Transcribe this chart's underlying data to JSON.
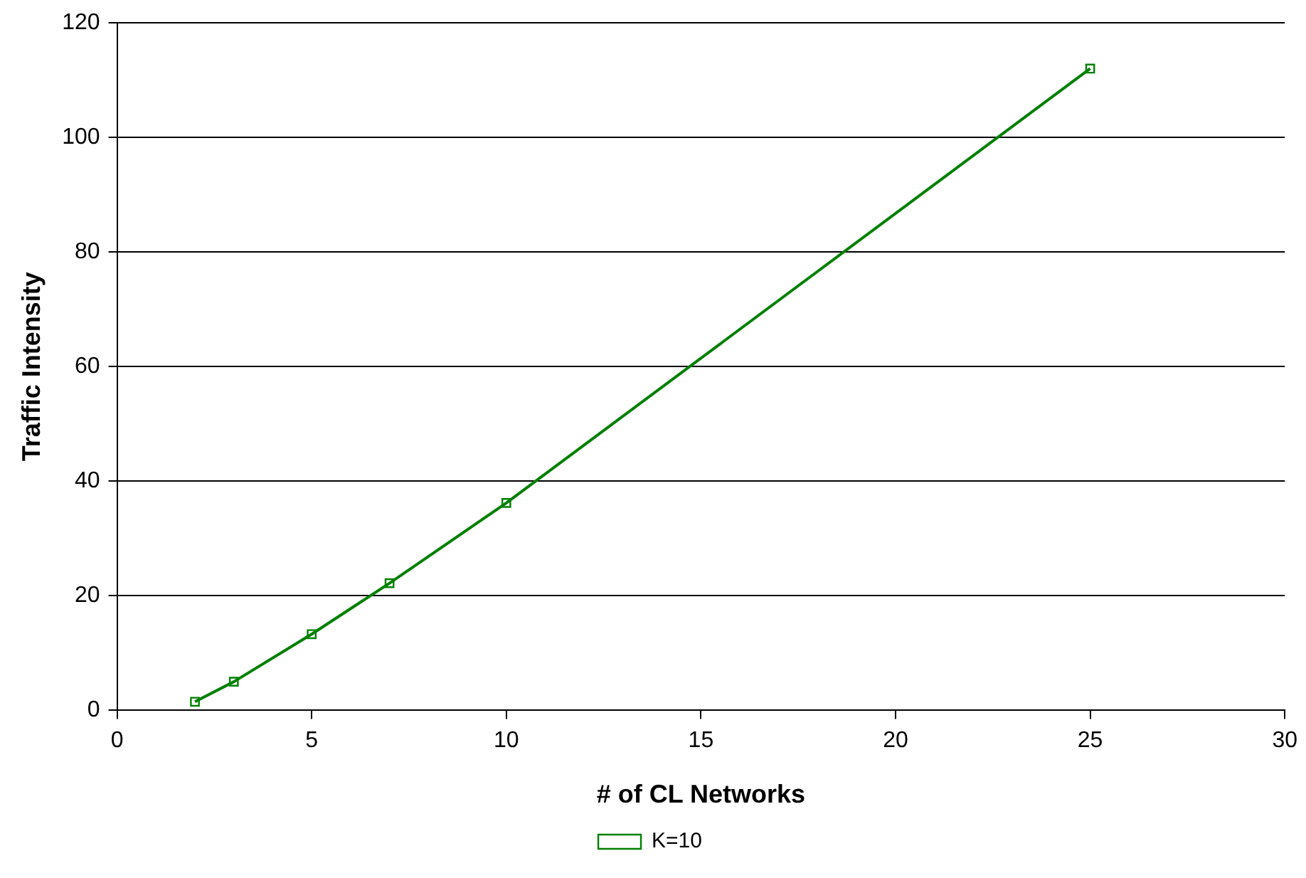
{
  "chart_data": {
    "type": "line",
    "xlabel": "# of CL Networks",
    "ylabel": "Traffic Intensity",
    "x": [
      2,
      3,
      5,
      7,
      10,
      25
    ],
    "series": [
      {
        "name": "K=10",
        "color": "#008000",
        "values": [
          1.5,
          5,
          13.3,
          22.2,
          36.2,
          112
        ]
      }
    ],
    "xlim": [
      0,
      30
    ],
    "xticks": [
      0,
      5,
      10,
      15,
      20,
      25,
      30
    ],
    "ylim": [
      0,
      120
    ],
    "yticks": [
      0,
      20,
      40,
      60,
      80,
      100,
      120
    ],
    "grid": "y",
    "legend": "bottom",
    "marker": "square",
    "line_style": "solid"
  }
}
